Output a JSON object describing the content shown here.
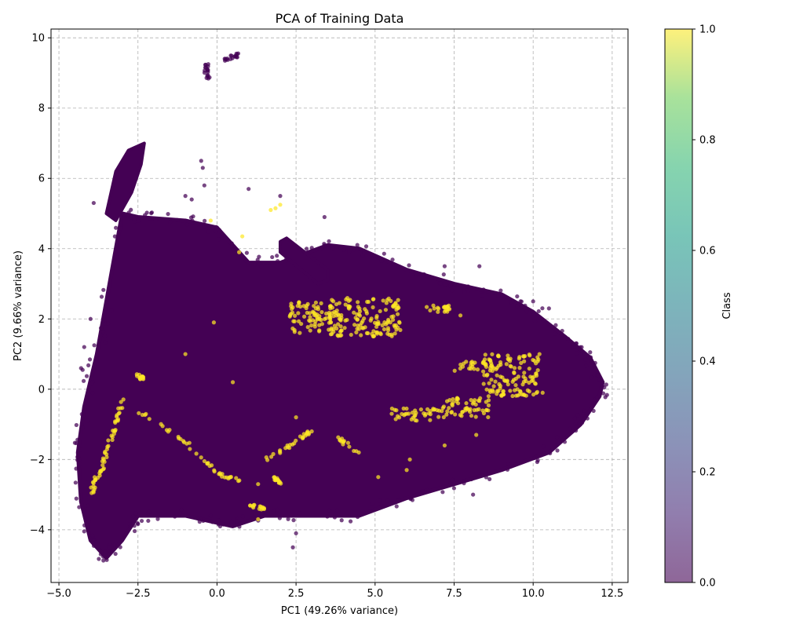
{
  "chart_data": {
    "type": "scatter",
    "title": "PCA of Training Data",
    "xlabel": "PC1 (49.26% variance)",
    "ylabel": "PC2 (9.66% variance)",
    "xlim": [
      -5.25,
      13.0
    ],
    "ylim": [
      -5.5,
      10.25
    ],
    "xticks": [
      -5.0,
      -2.5,
      0.0,
      2.5,
      5.0,
      7.5,
      10.0,
      12.5
    ],
    "xtick_labels": [
      "−5.0",
      "−2.5",
      "0.0",
      "2.5",
      "5.0",
      "7.5",
      "10.0",
      "12.5"
    ],
    "yticks": [
      -4,
      -2,
      0,
      2,
      4,
      6,
      8,
      10
    ],
    "ytick_labels": [
      "−4",
      "−2",
      "0",
      "2",
      "4",
      "6",
      "8",
      "10"
    ],
    "grid": true,
    "colorbar": {
      "label": "Class",
      "colormap": "viridis",
      "alpha": 0.6,
      "range": [
        0.0,
        1.0
      ],
      "ticks": [
        0.0,
        0.2,
        0.4,
        0.6,
        0.8,
        1.0
      ],
      "tick_labels": [
        "0.0",
        "0.2",
        "0.4",
        "0.6",
        "0.8",
        "1.0"
      ]
    },
    "series": [
      {
        "class": 0,
        "color": "#440154",
        "body_outline": [
          [
            -4.3,
            -3.2
          ],
          [
            -4.0,
            -4.3
          ],
          [
            -3.5,
            -4.8
          ],
          [
            -3.0,
            -4.3
          ],
          [
            -2.5,
            -3.6
          ],
          [
            -1.0,
            -3.6
          ],
          [
            0.5,
            -3.9
          ],
          [
            1.5,
            -3.6
          ],
          [
            3.0,
            -3.6
          ],
          [
            4.5,
            -3.6
          ],
          [
            6.0,
            -3.1
          ],
          [
            7.5,
            -2.7
          ],
          [
            9.0,
            -2.3
          ],
          [
            10.5,
            -1.8
          ],
          [
            11.5,
            -1.0
          ],
          [
            12.1,
            -0.2
          ],
          [
            12.2,
            0.2
          ],
          [
            11.8,
            0.9
          ],
          [
            11.0,
            1.5
          ],
          [
            10.0,
            2.2
          ],
          [
            9.0,
            2.7
          ],
          [
            7.5,
            3.0
          ],
          [
            6.0,
            3.4
          ],
          [
            4.5,
            4.0
          ],
          [
            3.5,
            4.1
          ],
          [
            2.0,
            3.6
          ],
          [
            1.0,
            3.6
          ],
          [
            0.0,
            4.6
          ],
          [
            -1.0,
            4.8
          ],
          [
            -2.5,
            4.9
          ],
          [
            -3.0,
            5.0
          ],
          [
            -3.5,
            2.5
          ],
          [
            -3.8,
            1.0
          ],
          [
            -4.2,
            -0.5
          ],
          [
            -4.4,
            -1.8
          ]
        ],
        "arms": [
          [
            [
              -3.5,
              5.0
            ],
            [
              -3.2,
              6.2
            ],
            [
              -2.8,
              6.8
            ],
            [
              -2.3,
              7.0
            ],
            [
              -2.4,
              6.4
            ],
            [
              -2.7,
              5.6
            ],
            [
              -3.2,
              4.8
            ]
          ],
          [
            [
              2.0,
              4.2
            ],
            [
              2.2,
              4.3
            ],
            [
              3.5,
              3.4
            ],
            [
              3.5,
              3.1
            ],
            [
              3.2,
              3.0
            ],
            [
              2.0,
              3.9
            ]
          ]
        ],
        "clusters": [
          {
            "x": -0.35,
            "y": 9.05
          },
          {
            "x": -0.3,
            "y": 8.9
          },
          {
            "x": -0.3,
            "y": 9.2
          },
          {
            "x": 0.3,
            "y": 9.4
          },
          {
            "x": 0.5,
            "y": 9.45
          },
          {
            "x": 0.6,
            "y": 9.5
          }
        ],
        "stray_points": [
          [
            -4.3,
            0.6
          ],
          [
            -4.25,
            0.55
          ],
          [
            -3.9,
            5.3
          ],
          [
            -4.2,
            1.2
          ],
          [
            -4.0,
            2.0
          ],
          [
            -0.5,
            6.5
          ],
          [
            -0.45,
            6.3
          ],
          [
            -0.4,
            5.8
          ],
          [
            1.0,
            5.7
          ],
          [
            2.0,
            5.5
          ],
          [
            3.4,
            4.9
          ],
          [
            2.4,
            -4.5
          ],
          [
            2.5,
            -4.1
          ],
          [
            0.1,
            -3.9
          ],
          [
            0.2,
            -3.85
          ],
          [
            7.2,
            3.5
          ],
          [
            8.3,
            3.5
          ],
          [
            9.6,
            2.5
          ],
          [
            10.0,
            2.5
          ],
          [
            10.5,
            2.3
          ],
          [
            11.0,
            -1.5
          ],
          [
            8.1,
            -3.0
          ],
          [
            6.5,
            -2.9
          ],
          [
            -1.0,
            5.5
          ],
          [
            -0.8,
            5.4
          ]
        ]
      },
      {
        "class": 1,
        "color": "#fde725",
        "dense_regions": [
          {
            "x": [
              2.3,
              3.7
            ],
            "y": [
              1.6,
              2.5
            ]
          },
          {
            "x": [
              3.5,
              5.8
            ],
            "y": [
              1.5,
              2.6
            ]
          },
          {
            "x": [
              6.5,
              7.5
            ],
            "y": [
              2.2,
              2.4
            ]
          },
          {
            "x": [
              7.0,
              8.6
            ],
            "y": [
              -0.8,
              -0.2
            ]
          },
          {
            "x": [
              8.4,
              10.2
            ],
            "y": [
              -0.2,
              1.0
            ]
          },
          {
            "x": [
              7.5,
              8.5
            ],
            "y": [
              0.5,
              0.8
            ]
          },
          {
            "x": [
              5.5,
              7.0
            ],
            "y": [
              -0.9,
              -0.5
            ]
          }
        ],
        "streaks": [
          [
            [
              -2.5,
              -0.6
            ],
            [
              -1.0,
              -1.5
            ],
            [
              0.0,
              -2.4
            ],
            [
              0.8,
              -2.6
            ]
          ],
          [
            [
              -2.6,
              0.4
            ],
            [
              -2.3,
              0.3
            ]
          ],
          [
            [
              -3.7,
              -2.5
            ],
            [
              -3.5,
              -1.8
            ],
            [
              -3.2,
              -1.0
            ],
            [
              -3.0,
              -0.3
            ]
          ],
          [
            [
              -4.0,
              -3.0
            ],
            [
              -3.8,
              -2.5
            ]
          ],
          [
            [
              1.5,
              -2.0
            ],
            [
              2.5,
              -1.5
            ],
            [
              3.0,
              -1.2
            ]
          ],
          [
            [
              3.8,
              -1.4
            ],
            [
              4.5,
              -1.8
            ]
          ],
          [
            [
              1.0,
              -3.3
            ],
            [
              1.5,
              -3.4
            ]
          ],
          [
            [
              1.8,
              -2.5
            ],
            [
              2.0,
              -2.7
            ]
          ]
        ],
        "stray_points": [
          [
            1.7,
            5.1
          ],
          [
            1.85,
            5.15
          ],
          [
            2.0,
            5.25
          ],
          [
            -0.2,
            4.8
          ],
          [
            0.8,
            4.35
          ],
          [
            0.7,
            3.9
          ],
          [
            1.3,
            -3.7
          ],
          [
            1.3,
            -2.7
          ],
          [
            6.0,
            -2.3
          ],
          [
            7.2,
            -1.6
          ],
          [
            5.1,
            -2.5
          ],
          [
            6.1,
            -2.0
          ],
          [
            8.2,
            -1.3
          ],
          [
            7.7,
            2.1
          ],
          [
            -0.1,
            1.9
          ],
          [
            -1.0,
            1.0
          ],
          [
            0.5,
            0.2
          ],
          [
            2.5,
            -0.8
          ],
          [
            10.3,
            -0.1
          ],
          [
            10.2,
            1.0
          ]
        ]
      }
    ]
  }
}
